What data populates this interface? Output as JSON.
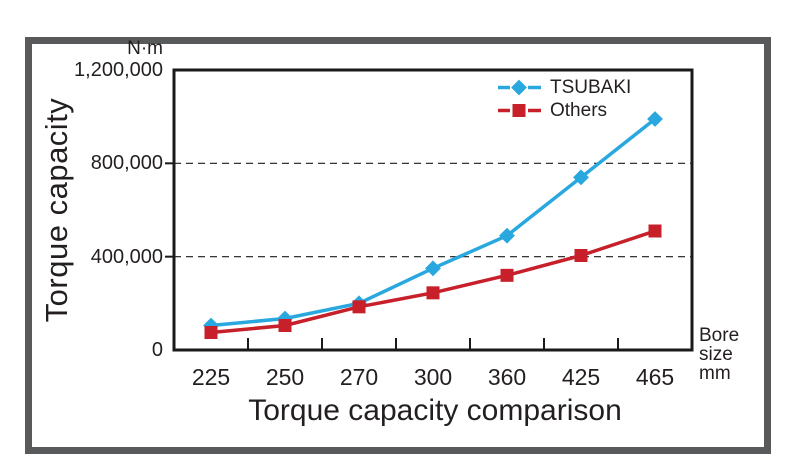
{
  "figure": {
    "unit_label": "N·m",
    "y_axis_title": "Torque capacity",
    "title": "Torque capacity comparison",
    "x_axis_unit_lines": [
      "Bore",
      "size",
      "mm"
    ]
  },
  "legend": [
    {
      "label": "TSUBAKI",
      "color": "#29a8df",
      "marker": "diamond"
    },
    {
      "label": "Others",
      "color": "#c7202a",
      "marker": "square"
    }
  ],
  "colors": {
    "tsubaki_blue": "#29a8df",
    "others_red": "#c7202a",
    "text": "#231f20",
    "frame_gray": "#58595b",
    "axis_black": "#1a1a1a"
  },
  "chart_data": {
    "type": "line",
    "title": "Torque capacity comparison",
    "xlabel": "Bore size mm",
    "ylabel": "Torque capacity (N·m)",
    "categories": [
      "225",
      "250",
      "270",
      "300",
      "360",
      "425",
      "465"
    ],
    "ylim": [
      0,
      1200000
    ],
    "y_ticks": [
      1200000,
      800000,
      400000,
      0
    ],
    "y_tick_labels": [
      "1,200,000",
      "800,000",
      "400,000",
      "0"
    ],
    "gridline_values": [
      800000,
      400000
    ],
    "grid": "horizontal dashed",
    "legend_position": "top-right inside plot",
    "x_ticks_between_categories": true,
    "series": [
      {
        "name": "TSUBAKI",
        "marker": "diamond",
        "color": "#29a8df",
        "values": [
          105000,
          135000,
          200000,
          350000,
          490000,
          740000,
          990000
        ]
      },
      {
        "name": "Others",
        "marker": "square",
        "color": "#c7202a",
        "values": [
          75000,
          105000,
          185000,
          245000,
          320000,
          405000,
          510000
        ]
      }
    ]
  }
}
